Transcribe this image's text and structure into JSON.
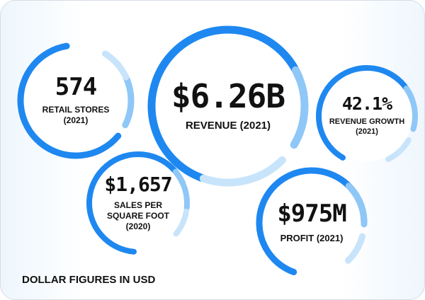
{
  "colors": {
    "ring_primary": "#1e88f0",
    "ring_secondary": "#8fc7f7",
    "ring_tertiary": "#c8e4fb",
    "text": "#111111"
  },
  "stats": {
    "retail_stores": {
      "value": "574",
      "label": "RETAIL STORES",
      "sublabel": "(2021)"
    },
    "revenue": {
      "value": "$6.26B",
      "label": "REVENUE (2021)"
    },
    "revenue_growth": {
      "value": "42.1%",
      "label": "REVENUE GROWTH",
      "sublabel": "(2021)"
    },
    "sales_per_sqft": {
      "value": "$1,657",
      "label": "SALES PER",
      "label2": "SQUARE FOOT",
      "sublabel": "(2020)"
    },
    "profit": {
      "value": "$975M",
      "label": "PROFIT (2021)"
    }
  },
  "footnote": "DOLLAR FIGURES IN USD"
}
